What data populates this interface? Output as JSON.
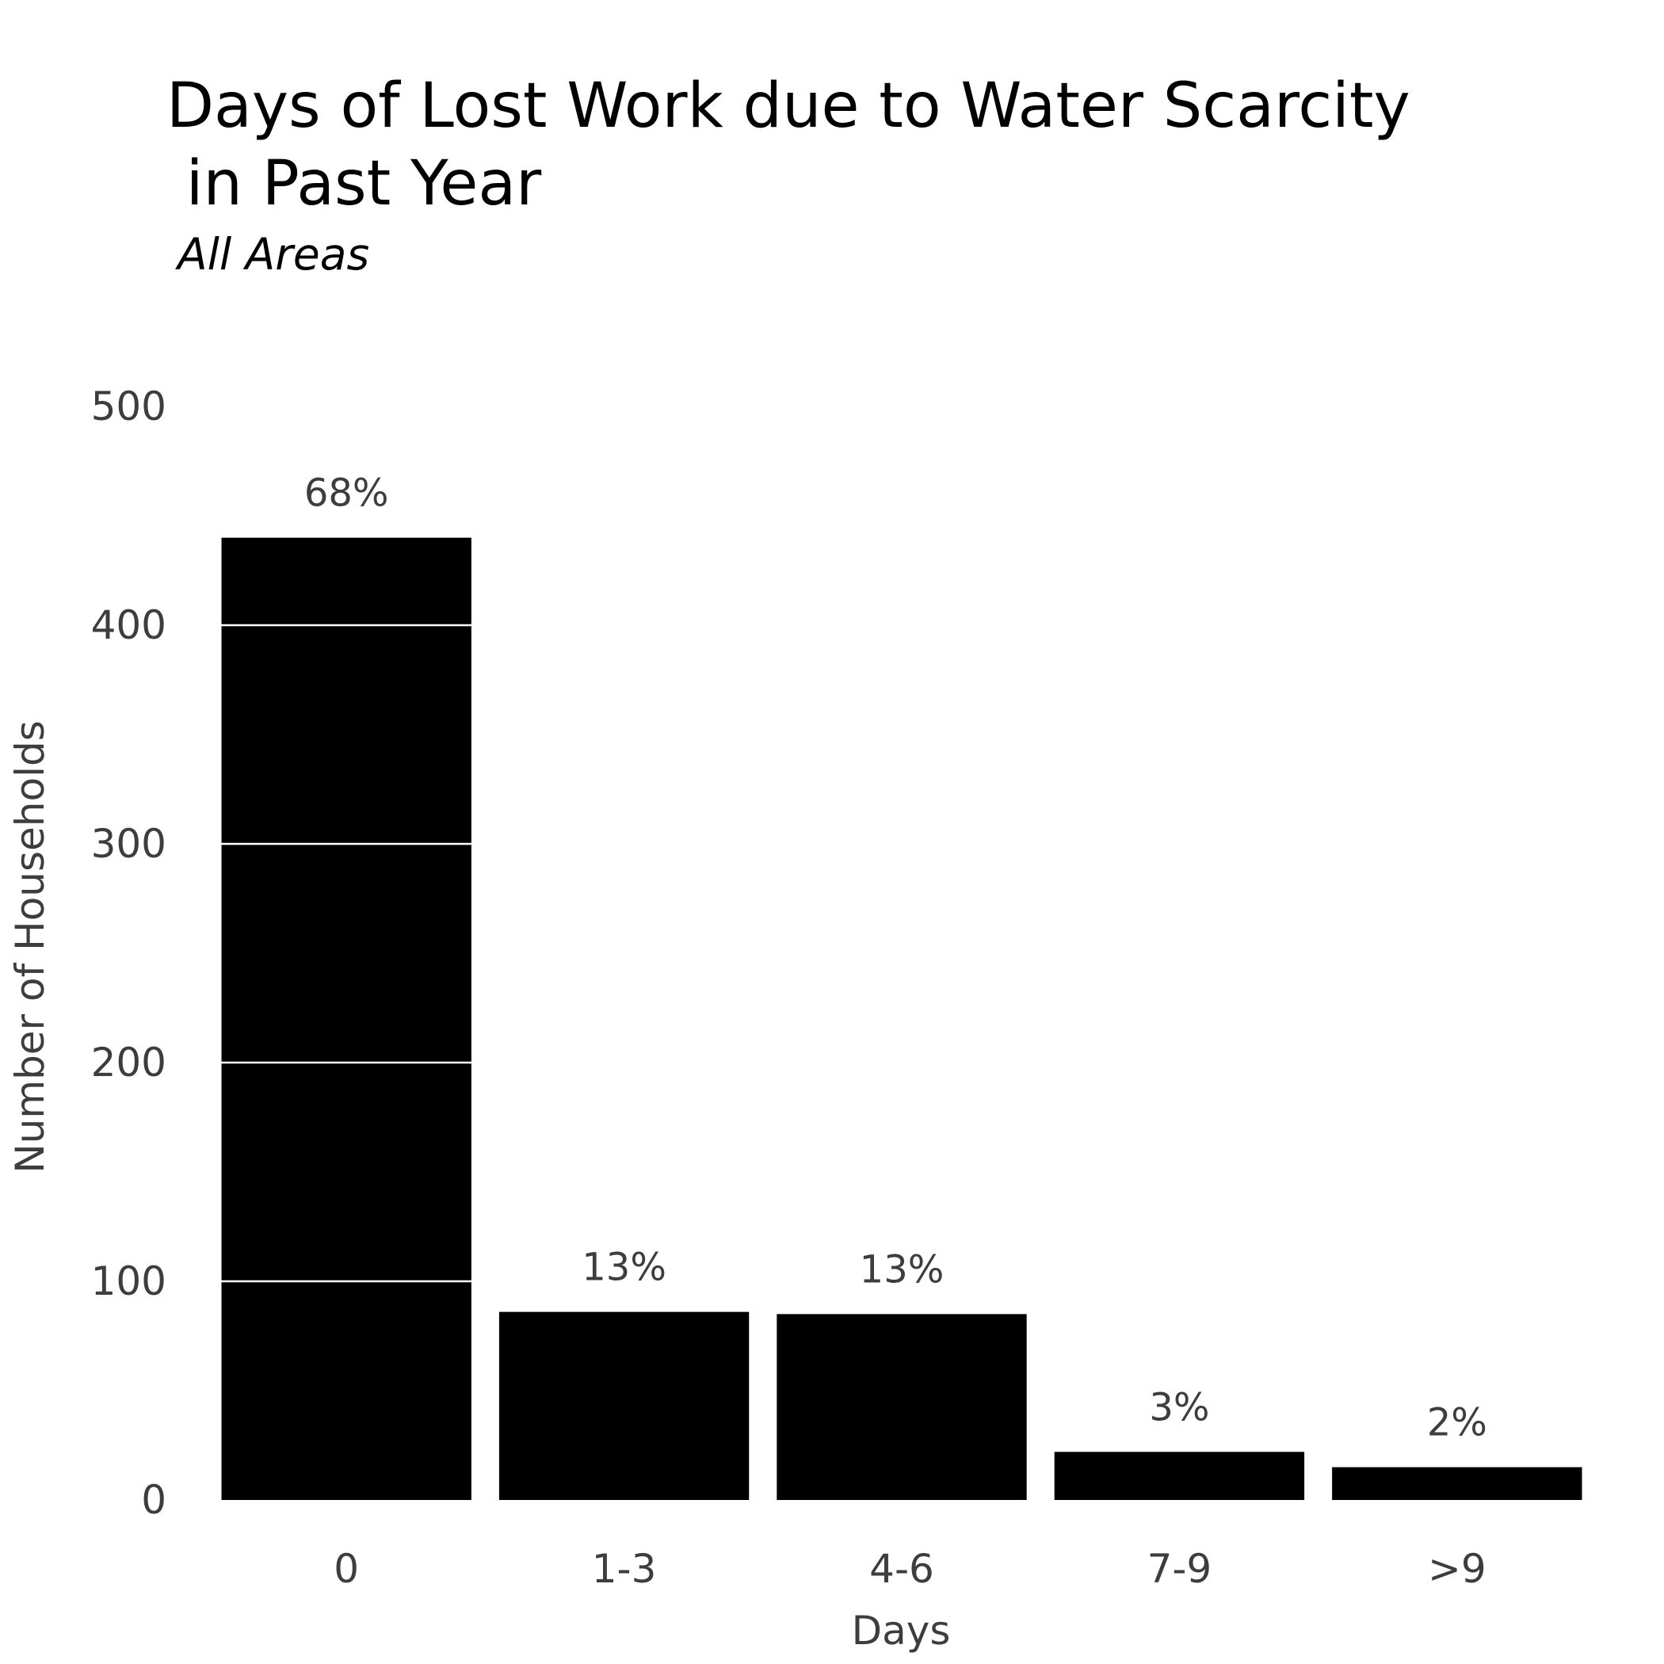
{
  "title": "Days of Lost Work due to Water Scarcity\n in Past Year",
  "subtitle": "All Areas",
  "chart_data": {
    "type": "bar",
    "title": "Days of Lost Work due to Water Scarcity\n in Past Year",
    "subtitle": "All Areas",
    "xlabel": "Days",
    "ylabel": "Number of Households",
    "categories": [
      "0",
      "1-3",
      "4-6",
      "7-9",
      ">9"
    ],
    "values": [
      440,
      86,
      85,
      22,
      15
    ],
    "data_labels": [
      "68%",
      "13%",
      "13%",
      "3%",
      "2%"
    ],
    "ylim": [
      0,
      500
    ],
    "yticks": [
      0,
      100,
      200,
      300,
      400,
      500
    ],
    "grid": "horizontal lines visible only through the bars",
    "legend": "none",
    "colors": {
      "bar": "#000000",
      "grid": "#ffffff",
      "text": "#3d3d3d",
      "title": "#000000",
      "background": "#ffffff"
    }
  }
}
